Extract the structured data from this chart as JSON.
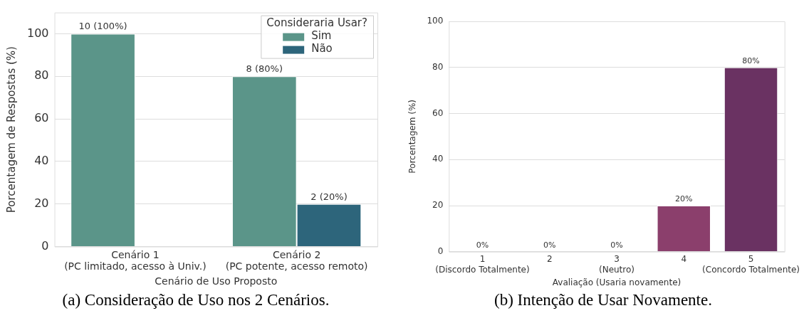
{
  "chart_data": [
    {
      "type": "bar",
      "title": "(a) Consideração de Uso nos 2 Cenários.",
      "xlabel": "Cenário de Uso Proposto",
      "ylabel": "Porcentagem de Respostas (%)",
      "legend_title": "Consideraria Usar?",
      "categories": [
        "Cenário 1\n(PC limitado, acesso à Univ.)",
        "Cenário 2\n(PC potente, acesso remoto)"
      ],
      "series": [
        {
          "name": "Sim",
          "color": "#5b9589",
          "values": [
            100,
            80
          ],
          "value_labels": [
            "10 (100%)",
            "8 (80%)"
          ]
        },
        {
          "name": "Não",
          "color": "#2d657b",
          "values": [
            null,
            20
          ],
          "value_labels": [
            null,
            "2 (20%)"
          ]
        }
      ],
      "ylim": [
        0,
        110
      ],
      "yticks": [
        0,
        20,
        40,
        60,
        80,
        100
      ],
      "grid": "y",
      "legend": "top right"
    },
    {
      "type": "bar",
      "title": "(b) Intenção de Usar Novamente.",
      "xlabel": "Avaliação (Usaria novamente)",
      "ylabel": "Porcentagem (%)",
      "categories": [
        "1\n(Discordo Totalmente)",
        "2",
        "3\n(Neutro)",
        "4",
        "5\n(Concordo Totalmente)"
      ],
      "values": [
        0,
        0,
        0,
        20,
        80
      ],
      "colors": [
        "#e9a07f",
        "#d9636e",
        "#b24a6f",
        "#8b3f6c",
        "#6a3262"
      ],
      "value_labels": [
        "0%",
        "0%",
        "0%",
        "20%",
        "80%"
      ],
      "ylim": [
        0,
        100
      ],
      "yticks": [
        0,
        20,
        40,
        60,
        80,
        100
      ],
      "grid": "y"
    }
  ]
}
